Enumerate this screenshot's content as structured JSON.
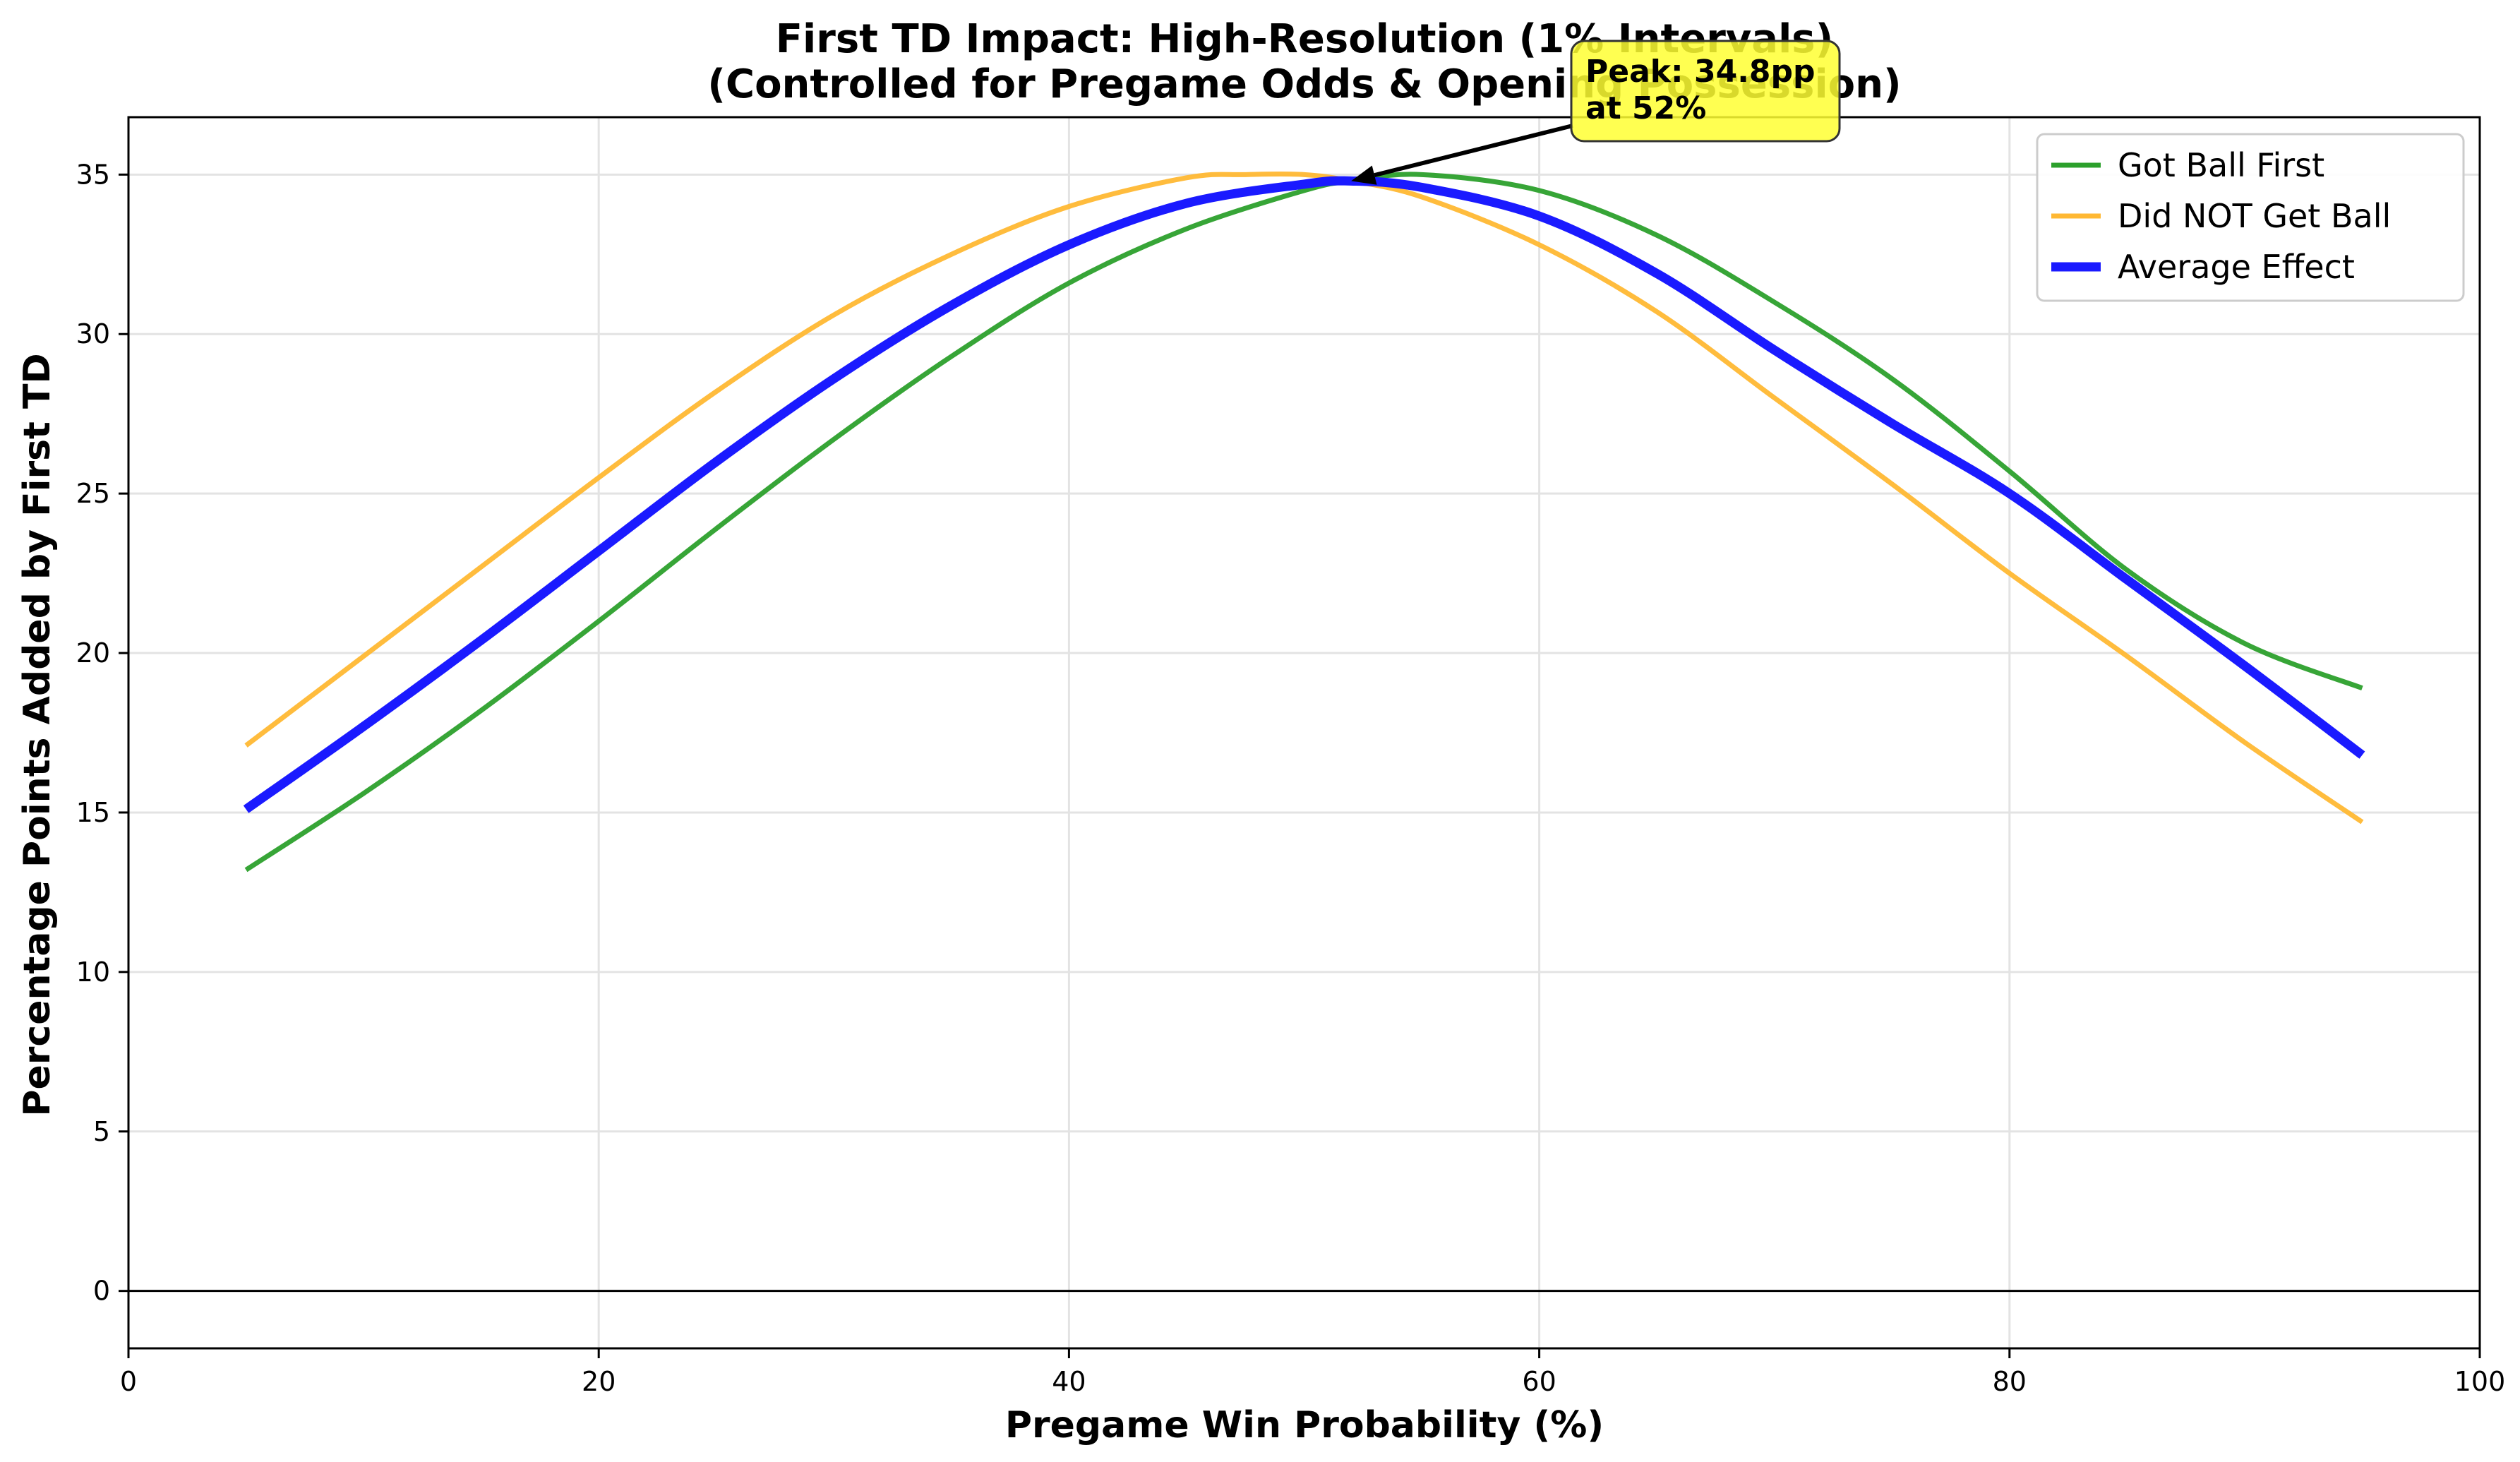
{
  "chart_data": {
    "type": "line",
    "title": "First TD Impact: High-Resolution (1% Intervals)",
    "subtitle": "(Controlled for Pregame Odds & Opening Possession)",
    "xlabel": "Pregame Win Probability (%)",
    "ylabel": "Percentage Points Added by First TD",
    "xlim": [
      0,
      100
    ],
    "ylim": [
      -1.8,
      36.8
    ],
    "xticks": [
      0,
      20,
      40,
      60,
      80,
      100
    ],
    "yticks": [
      0,
      5,
      10,
      15,
      20,
      25,
      30,
      35
    ],
    "grid": true,
    "legend_position": "top-right",
    "reference_line_y": 0,
    "series": [
      {
        "name": "Got Ball First",
        "color": "#2ca02c",
        "x": [
          5,
          10,
          15,
          20,
          25,
          30,
          35,
          40,
          45,
          50,
          52,
          55,
          60,
          65,
          70,
          75,
          80,
          85,
          90,
          95
        ],
        "y": [
          13.2,
          15.6,
          18.2,
          21.0,
          23.9,
          26.7,
          29.3,
          31.6,
          33.3,
          34.5,
          34.8,
          35.0,
          34.5,
          33.1,
          31.0,
          28.6,
          25.7,
          22.6,
          20.3,
          18.9
        ]
      },
      {
        "name": "Did NOT Get Ball",
        "color": "#ffb833",
        "x": [
          5,
          10,
          15,
          20,
          25,
          30,
          35,
          40,
          45,
          47.5,
          50,
          52,
          55,
          60,
          65,
          70,
          75,
          80,
          85,
          90,
          95
        ],
        "y": [
          17.1,
          19.9,
          22.7,
          25.5,
          28.2,
          30.6,
          32.5,
          34.0,
          34.9,
          35.0,
          35.0,
          34.8,
          34.3,
          32.8,
          30.7,
          28.0,
          25.3,
          22.5,
          19.9,
          17.2,
          14.7
        ]
      },
      {
        "name": "Average Effect",
        "color": "#1a1aff",
        "x": [
          5,
          10,
          15,
          20,
          25,
          30,
          35,
          40,
          45,
          50,
          52,
          55,
          60,
          65,
          70,
          75,
          80,
          85,
          90,
          95
        ],
        "y": [
          15.1,
          17.7,
          20.4,
          23.2,
          26.0,
          28.6,
          30.9,
          32.8,
          34.1,
          34.7,
          34.8,
          34.6,
          33.7,
          31.9,
          29.5,
          27.2,
          25.0,
          22.3,
          19.6,
          16.8
        ]
      }
    ],
    "annotation": {
      "text_line1": "Peak: 34.8pp",
      "text_line2": "at 52%",
      "point_x": 52,
      "point_y": 34.8,
      "box_color": "#ffff33"
    }
  }
}
